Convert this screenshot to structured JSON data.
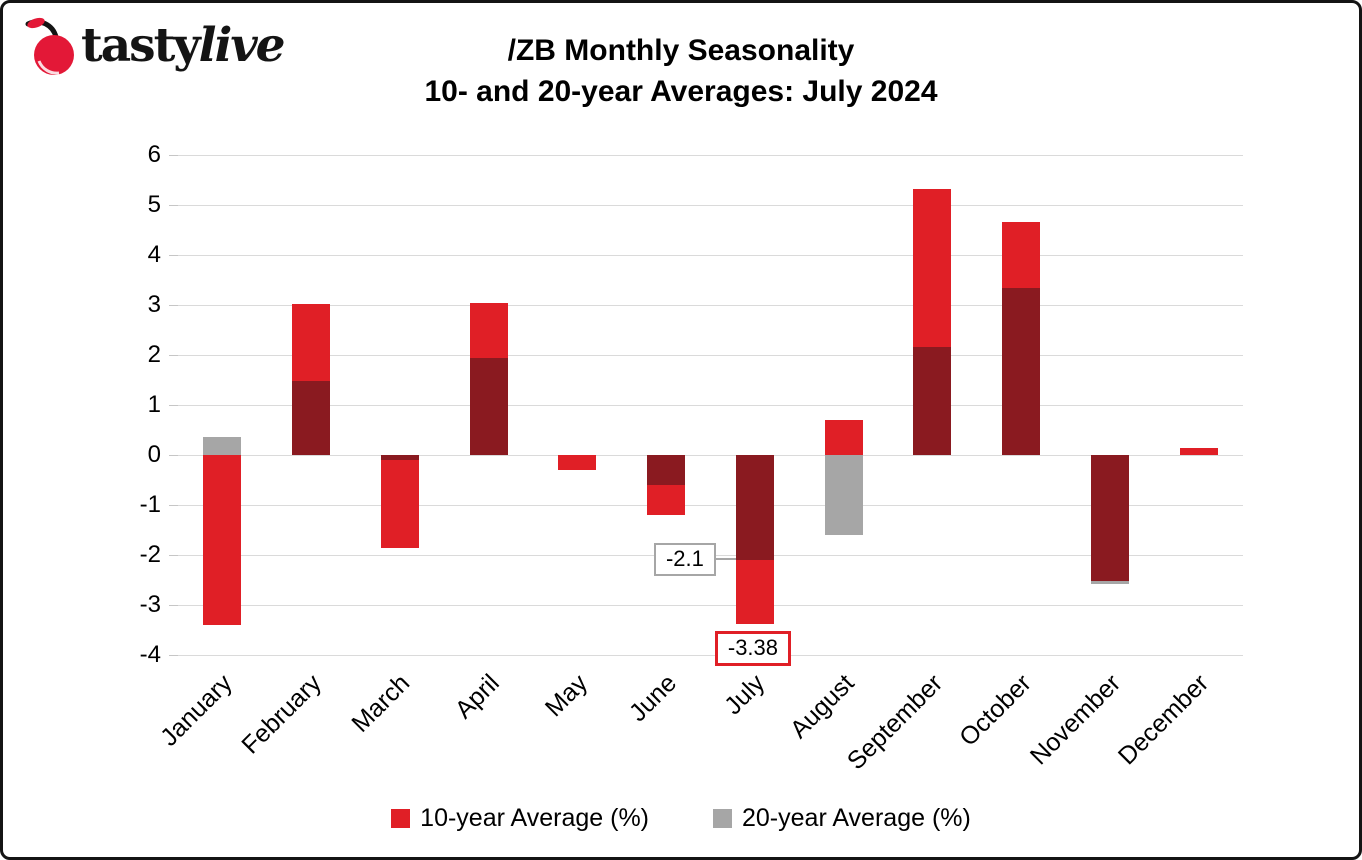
{
  "header": {
    "logo_text_regular": "tasty",
    "logo_text_italic": "live",
    "title_line1": "/ZB Monthly Seasonality",
    "title_line2": "10- and 20-year Averages: July 2024"
  },
  "chart_data": {
    "type": "bar",
    "title": "/ZB Monthly Seasonality",
    "subtitle": "10- and 20-year Averages: July 2024",
    "categories": [
      "January",
      "February",
      "March",
      "April",
      "May",
      "June",
      "July",
      "August",
      "September",
      "October",
      "November",
      "December"
    ],
    "series": [
      {
        "name": "10-year Average (%)",
        "color": "#E01F26",
        "values": [
          -3.4,
          3.02,
          -1.86,
          3.05,
          -0.3,
          -1.2,
          -3.38,
          0.7,
          5.33,
          4.67,
          -2.52,
          0.15
        ]
      },
      {
        "name": "20-year Average (%)",
        "color": "#A6A6A6",
        "values": [
          0.36,
          1.48,
          -0.1,
          1.95,
          0,
          -0.6,
          -2.1,
          -1.6,
          2.16,
          3.35,
          -2.58,
          0
        ]
      }
    ],
    "overlap_color": "#8A1A20",
    "ylim": [
      -4,
      6
    ],
    "ytick_step": 1,
    "ytick_labels": [
      "6",
      "5",
      "4",
      "3",
      "2",
      "1",
      "0",
      "-1",
      "-2",
      "-3",
      "-4"
    ],
    "grid": true,
    "legend_position": "bottom",
    "annotations": [
      {
        "text": "-2.1",
        "month": "July",
        "value": -2.1,
        "placement": "left",
        "border_color": "#A6A6A6",
        "border_width": 2
      },
      {
        "text": "-3.38",
        "month": "July",
        "value": -3.38,
        "placement": "below",
        "border_color": "#E01F26",
        "border_width": 3
      }
    ]
  }
}
